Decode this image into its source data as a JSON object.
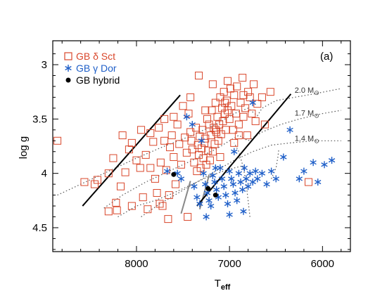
{
  "chart_data": {
    "type": "scatter",
    "panel_label": "(a)",
    "xlabel": "T",
    "xlabel_sub": "eff",
    "ylabel": "log g",
    "xlim": [
      8900,
      5700
    ],
    "ylim": [
      4.72,
      2.78
    ],
    "x_ticks": [
      8000,
      7000,
      6000
    ],
    "y_ticks": [
      3,
      3.5,
      4,
      4.5
    ],
    "y_tick_labels": [
      "3",
      "3.5",
      "4",
      "4.5"
    ],
    "legend_position": "top-left",
    "legend": [
      {
        "label": "GB δ Sct",
        "color": "#d9472b",
        "marker": "open-square"
      },
      {
        "label": "GB γ Dor",
        "color": "#1f5fc8",
        "marker": "asterisk"
      },
      {
        "label": "GB hybrid",
        "color": "#000000",
        "marker": "filled-circle"
      }
    ],
    "series": [
      {
        "name": "GB δ Sct",
        "color": "#d9472b",
        "points": [
          [
            8850,
            3.7
          ],
          [
            8560,
            4.08
          ],
          [
            8450,
            4.1
          ],
          [
            8420,
            4.06
          ],
          [
            8300,
            4.0
          ],
          [
            8250,
            3.86
          ],
          [
            8210,
            4.34
          ],
          [
            8220,
            4.27
          ],
          [
            8170,
            4.12
          ],
          [
            8120,
            3.99
          ],
          [
            8080,
            3.78
          ],
          [
            8050,
            3.72
          ],
          [
            8000,
            3.88
          ],
          [
            7960,
            3.95
          ],
          [
            7930,
            4.22
          ],
          [
            7900,
            3.83
          ],
          [
            7880,
            4.33
          ],
          [
            7850,
            3.63
          ],
          [
            7820,
            3.71
          ],
          [
            7800,
            4.05
          ],
          [
            7780,
            4.18
          ],
          [
            7760,
            3.58
          ],
          [
            7740,
            3.9
          ],
          [
            7720,
            4.3
          ],
          [
            7700,
            3.5
          ],
          [
            7680,
            3.97
          ],
          [
            7660,
            4.42
          ],
          [
            7640,
            3.76
          ],
          [
            7620,
            3.65
          ],
          [
            7600,
            3.85
          ],
          [
            7580,
            4.1
          ],
          [
            7560,
            3.55
          ],
          [
            7540,
            3.73
          ],
          [
            7520,
            3.92
          ],
          [
            7500,
            3.38
          ],
          [
            7480,
            3.67
          ],
          [
            7460,
            3.81
          ],
          [
            7440,
            3.45
          ],
          [
            7420,
            3.62
          ],
          [
            7410,
            3.7
          ],
          [
            7400,
            3.78
          ],
          [
            7380,
            3.9
          ],
          [
            7360,
            3.58
          ],
          [
            7340,
            3.74
          ],
          [
            7330,
            3.83
          ],
          [
            7320,
            3.66
          ],
          [
            7310,
            3.95
          ],
          [
            7300,
            3.77
          ],
          [
            7290,
            3.6
          ],
          [
            7280,
            3.86
          ],
          [
            7270,
            3.72
          ],
          [
            7260,
            3.68
          ],
          [
            7250,
            3.92
          ],
          [
            7240,
            3.5
          ],
          [
            7230,
            3.79
          ],
          [
            7220,
            3.55
          ],
          [
            7210,
            3.88
          ],
          [
            7200,
            3.65
          ],
          [
            7190,
            3.42
          ],
          [
            7180,
            3.8
          ],
          [
            7170,
            3.58
          ],
          [
            7160,
            3.73
          ],
          [
            7150,
            3.35
          ],
          [
            7140,
            3.62
          ],
          [
            7130,
            3.48
          ],
          [
            7120,
            3.7
          ],
          [
            7110,
            3.55
          ],
          [
            7100,
            3.3
          ],
          [
            7090,
            3.64
          ],
          [
            7080,
            3.4
          ],
          [
            7070,
            3.52
          ],
          [
            7060,
            3.25
          ],
          [
            7050,
            3.45
          ],
          [
            7040,
            3.6
          ],
          [
            7030,
            3.33
          ],
          [
            7020,
            3.15
          ],
          [
            7000,
            3.5
          ],
          [
            6990,
            3.22
          ],
          [
            6980,
            3.38
          ],
          [
            6960,
            3.6
          ],
          [
            6950,
            3.28
          ],
          [
            6930,
            3.45
          ],
          [
            6920,
            3.2
          ],
          [
            6900,
            3.55
          ],
          [
            6880,
            3.35
          ],
          [
            6860,
            3.12
          ],
          [
            6850,
            3.48
          ],
          [
            6830,
            3.4
          ],
          [
            6810,
            3.65
          ],
          [
            6800,
            3.25
          ],
          [
            6780,
            3.3
          ],
          [
            6760,
            3.45
          ],
          [
            6740,
            3.18
          ],
          [
            6720,
            3.52
          ],
          [
            6700,
            3.36
          ],
          [
            6650,
            3.3
          ],
          [
            6620,
            3.55
          ],
          [
            6560,
            3.25
          ],
          [
            7330,
            3.1
          ],
          [
            7180,
            3.18
          ],
          [
            7050,
            3.35
          ],
          [
            7420,
            3.3
          ],
          [
            7600,
            3.48
          ],
          [
            7700,
            3.7
          ],
          [
            7850,
            3.95
          ],
          [
            7950,
            3.6
          ],
          [
            8150,
            3.65
          ],
          [
            8300,
            4.35
          ],
          [
            8050,
            4.3
          ],
          [
            7750,
            4.28
          ],
          [
            7450,
            4.4
          ],
          [
            7650,
            4.2
          ],
          [
            7350,
            3.98
          ],
          [
            7150,
            3.6
          ],
          [
            7100,
            3.85
          ],
          [
            6950,
            3.72
          ],
          [
            6900,
            3.65
          ],
          [
            6850,
            3.28
          ],
          [
            7260,
            3.42
          ],
          [
            7020,
            3.42
          ],
          [
            6150,
            4.08
          ]
        ]
      },
      {
        "name": "GB γ Dor",
        "color": "#1f5fc8",
        "points": [
          [
            7670,
            3.98
          ],
          [
            7560,
            4.0
          ],
          [
            7520,
            4.05
          ],
          [
            7460,
            3.48
          ],
          [
            7400,
            3.55
          ],
          [
            7380,
            4.12
          ],
          [
            7350,
            4.22
          ],
          [
            7320,
            4.28
          ],
          [
            7300,
            3.7
          ],
          [
            7280,
            4.0
          ],
          [
            7260,
            4.1
          ],
          [
            7240,
            4.18
          ],
          [
            7220,
            4.25
          ],
          [
            7200,
            4.3
          ],
          [
            7180,
            4.02
          ],
          [
            7160,
            4.08
          ],
          [
            7140,
            4.15
          ],
          [
            7120,
            4.22
          ],
          [
            7100,
            3.95
          ],
          [
            7080,
            4.05
          ],
          [
            7060,
            4.12
          ],
          [
            7040,
            4.2
          ],
          [
            7020,
            4.28
          ],
          [
            7000,
            3.98
          ],
          [
            6980,
            4.05
          ],
          [
            6960,
            4.1
          ],
          [
            6940,
            4.18
          ],
          [
            6920,
            4.25
          ],
          [
            6900,
            4.0
          ],
          [
            6880,
            4.08
          ],
          [
            6860,
            4.15
          ],
          [
            6840,
            3.95
          ],
          [
            6820,
            4.05
          ],
          [
            6800,
            4.12
          ],
          [
            6780,
            4.0
          ],
          [
            6750,
            4.08
          ],
          [
            6720,
            3.98
          ],
          [
            6700,
            4.05
          ],
          [
            6650,
            4.0
          ],
          [
            6600,
            4.1
          ],
          [
            6550,
            3.98
          ],
          [
            6500,
            4.05
          ],
          [
            6420,
            3.85
          ],
          [
            6350,
            3.6
          ],
          [
            6250,
            4.05
          ],
          [
            6200,
            3.98
          ],
          [
            6100,
            3.9
          ],
          [
            6050,
            4.08
          ],
          [
            5980,
            3.92
          ],
          [
            5900,
            3.88
          ],
          [
            7250,
            4.4
          ],
          [
            7000,
            4.38
          ],
          [
            6850,
            4.35
          ],
          [
            7150,
            3.95
          ],
          [
            6950,
            3.8
          ],
          [
            6750,
            3.35
          ]
        ]
      },
      {
        "name": "GB hybrid",
        "color": "#000000",
        "points": [
          [
            7600,
            4.01
          ],
          [
            7230,
            4.14
          ],
          [
            7150,
            4.2
          ]
        ]
      }
    ],
    "boundary_lines": [
      [
        [
          8580,
          4.3
        ],
        [
          7530,
          3.28
        ]
      ],
      [
        [
          7350,
          4.3
        ],
        [
          6340,
          3.27
        ]
      ]
    ],
    "gray_lines": [
      [
        [
          7520,
          4.37
        ],
        [
          7420,
          4.07
        ]
      ],
      [
        [
          7320,
          4.33
        ],
        [
          7220,
          4.02
        ]
      ]
    ],
    "evolutionary_tracks": [
      {
        "label": "2.0 M",
        "label_sub": "⊙",
        "label_at": [
          6300,
          3.26
        ],
        "points": [
          [
            8850,
            4.2
          ],
          [
            8600,
            4.1
          ],
          [
            8300,
            3.98
          ],
          [
            8000,
            3.86
          ],
          [
            7700,
            3.75
          ],
          [
            7400,
            3.65
          ],
          [
            7150,
            3.55
          ],
          [
            6950,
            3.45
          ],
          [
            6800,
            3.4
          ],
          [
            6700,
            3.47
          ],
          [
            6650,
            3.4
          ],
          [
            6500,
            3.33
          ],
          [
            6300,
            3.3
          ],
          [
            6100,
            3.27
          ],
          [
            5800,
            3.22
          ]
        ]
      },
      {
        "label": "1.7 M",
        "label_sub": "⊙",
        "label_at": [
          6300,
          3.47
        ],
        "points": [
          [
            8350,
            4.32
          ],
          [
            8150,
            4.2
          ],
          [
            7900,
            4.08
          ],
          [
            7650,
            3.98
          ],
          [
            7400,
            3.88
          ],
          [
            7150,
            3.78
          ],
          [
            7000,
            3.7
          ],
          [
            6900,
            3.65
          ],
          [
            6800,
            3.7
          ],
          [
            6650,
            3.62
          ],
          [
            6450,
            3.55
          ],
          [
            6250,
            3.5
          ],
          [
            6000,
            3.45
          ],
          [
            5800,
            3.42
          ]
        ]
      },
      {
        "label": "1.4 M",
        "label_sub": "⊙",
        "label_at": [
          6300,
          3.7
        ],
        "points": [
          [
            7950,
            4.4
          ],
          [
            7750,
            4.28
          ],
          [
            7550,
            4.18
          ],
          [
            7350,
            4.08
          ],
          [
            7150,
            3.98
          ],
          [
            6950,
            3.88
          ],
          [
            6750,
            3.8
          ],
          [
            6550,
            3.74
          ],
          [
            6350,
            3.72
          ],
          [
            6100,
            3.7
          ],
          [
            5800,
            3.7
          ]
        ]
      },
      {
        "label": "",
        "points": [
          [
            8200,
            4.4
          ],
          [
            8000,
            4.3
          ],
          [
            7800,
            4.25
          ],
          [
            7600,
            4.18
          ],
          [
            7400,
            4.1
          ],
          [
            7200,
            4.02
          ],
          [
            7000,
            3.96
          ],
          [
            6850,
            3.93
          ]
        ]
      },
      {
        "label": "",
        "points": [
          [
            6780,
            4.4
          ],
          [
            6800,
            4.25
          ],
          [
            6820,
            4.1
          ],
          [
            6850,
            3.95
          ],
          [
            6900,
            3.8
          ],
          [
            6950,
            3.72
          ]
        ]
      },
      {
        "label": "",
        "points": [
          [
            6550,
            4.05
          ],
          [
            6500,
            3.95
          ],
          [
            6480,
            3.85
          ],
          [
            6470,
            3.78
          ]
        ]
      }
    ]
  }
}
